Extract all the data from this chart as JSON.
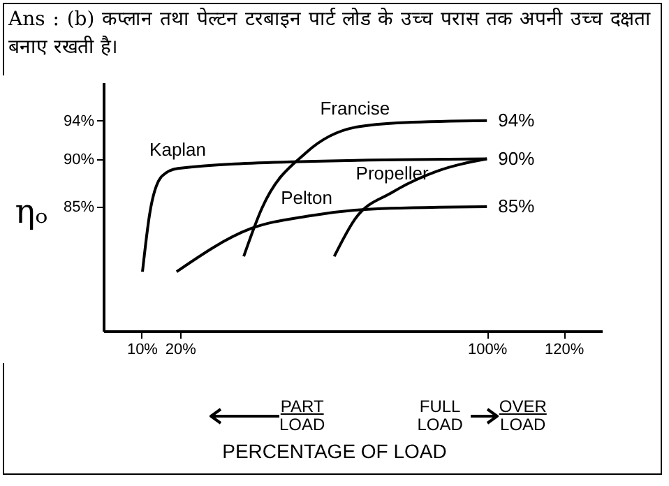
{
  "chart_data": {
    "type": "line",
    "title": "Ans : (b) कप्लान तथा पेल्टन टरबाइन पार्ट लोड के उच्च परास तक अपनी उच्च दक्षता बनाए रखती है।",
    "xlabel": "PERCENTAGE OF LOAD",
    "ylabel": "ηₒ",
    "xlim": [
      0,
      130
    ],
    "xticks": [
      {
        "value": 10,
        "label": "10%"
      },
      {
        "value": 20,
        "label": "20%"
      },
      {
        "value": 100,
        "label": "100%"
      },
      {
        "value": 120,
        "label": "120%"
      }
    ],
    "ylim": [
      72,
      98
    ],
    "yticks": [
      {
        "value": 85,
        "label": "85%"
      },
      {
        "value": 90,
        "label": "90%"
      },
      {
        "value": 94,
        "label": "94%"
      }
    ],
    "series": [
      {
        "name": "Kaplan",
        "color": "#000000",
        "x": [
          10.2,
          12.1,
          15.3,
          19.4,
          49.6,
          100
        ],
        "values": [
          78.2,
          84.3,
          88.2,
          89,
          89.7,
          90
        ],
        "value_labels": [
          null,
          null,
          null,
          null,
          null,
          "90%"
        ]
      },
      {
        "name": "Francise",
        "color": "#000000",
        "x": [
          36.6,
          41.3,
          53,
          65.6,
          78.7,
          100
        ],
        "values": [
          79.8,
          84.8,
          90.7,
          93.3,
          93.8,
          94
        ],
        "value_labels": [
          null,
          null,
          null,
          null,
          null,
          "94%"
        ]
      },
      {
        "name": "Pelton",
        "color": "#000000",
        "x": [
          19.1,
          38.4,
          53,
          72.4,
          100
        ],
        "values": [
          78.2,
          82.7,
          84,
          84.8,
          85
        ],
        "value_labels": [
          null,
          null,
          null,
          null,
          "85%"
        ]
      },
      {
        "name": "Propeller",
        "color": "#000000",
        "x": [
          60.2,
          65.6,
          75.3,
          86.9,
          100
        ],
        "values": [
          79.8,
          83.7,
          86.5,
          88.7,
          90
        ],
        "value_labels": [
          null,
          null,
          null,
          null,
          null
        ]
      }
    ],
    "annotations": [
      "PART LOAD",
      "FULL LOAD",
      "OVER LOAD"
    ]
  }
}
